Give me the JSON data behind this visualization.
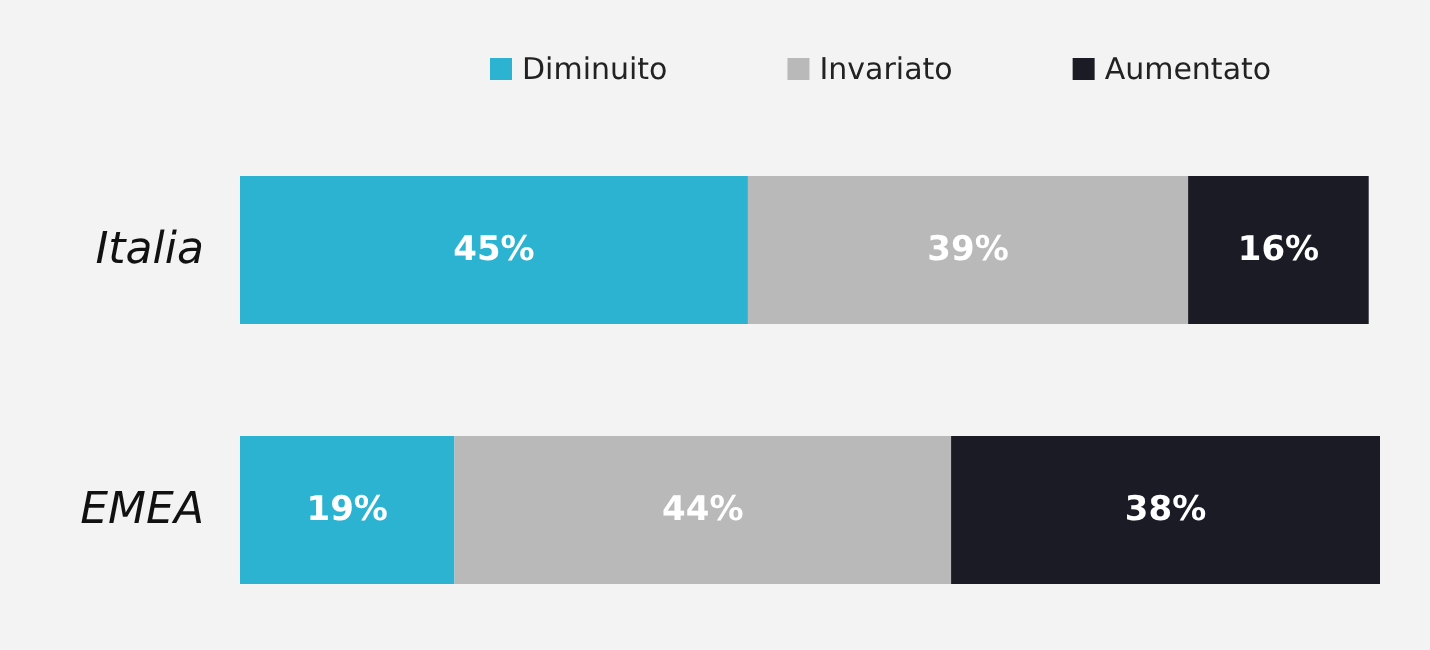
{
  "chart_data": {
    "type": "bar",
    "orientation": "horizontal",
    "stacked": true,
    "legend": "top",
    "categories": [
      "Italia",
      "EMEA"
    ],
    "series": [
      {
        "name": "Diminuito",
        "color": "#2bb3d1",
        "values": [
          45,
          19
        ],
        "value_labels": [
          "45%",
          "19%"
        ]
      },
      {
        "name": "Invariato",
        "color": "#b9b9b9",
        "values": [
          39,
          44
        ],
        "value_labels": [
          "39%",
          "44%"
        ]
      },
      {
        "name": "Aumentato",
        "color": "#1b1b26",
        "values": [
          16,
          38
        ],
        "value_labels": [
          "16%",
          "38%"
        ]
      }
    ]
  }
}
